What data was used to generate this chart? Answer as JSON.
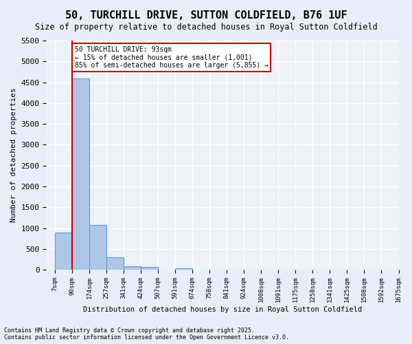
{
  "title": "50, TURCHILL DRIVE, SUTTON COLDFIELD, B76 1UF",
  "subtitle": "Size of property relative to detached houses in Royal Sutton Coldfield",
  "xlabel": "Distribution of detached houses by size in Royal Sutton Coldfield",
  "ylabel": "Number of detached properties",
  "bin_labels": [
    "7sqm",
    "90sqm",
    "174sqm",
    "257sqm",
    "341sqm",
    "424sqm",
    "507sqm",
    "591sqm",
    "674sqm",
    "758sqm",
    "841sqm",
    "924sqm",
    "1008sqm",
    "1091sqm",
    "1175sqm",
    "1258sqm",
    "1341sqm",
    "1425sqm",
    "1508sqm",
    "1592sqm",
    "1675sqm"
  ],
  "bar_values": [
    900,
    4600,
    1080,
    300,
    80,
    60,
    0,
    30,
    0,
    0,
    0,
    0,
    0,
    0,
    0,
    0,
    0,
    0,
    0,
    0
  ],
  "bar_color": "#aec6e8",
  "bar_edge_color": "#5a9fd4",
  "vline_x": 1,
  "vline_color": "#cc0000",
  "annotation_title": "50 TURCHILL DRIVE: 93sqm",
  "annotation_line1": "← 15% of detached houses are smaller (1,001)",
  "annotation_line2": "85% of semi-detached houses are larger (5,855) →",
  "annotation_box_color": "#cc0000",
  "ylim": [
    0,
    5500
  ],
  "yticks": [
    0,
    500,
    1000,
    1500,
    2000,
    2500,
    3000,
    3500,
    4000,
    4500,
    5000,
    5500
  ],
  "footnote": "Contains HM Land Registry data © Crown copyright and database right 2025.\nContains public sector information licensed under the Open Government Licence v3.0.",
  "bg_color": "#e8eef8",
  "plot_bg_color": "#eef2f8",
  "grid_color": "#ffffff"
}
